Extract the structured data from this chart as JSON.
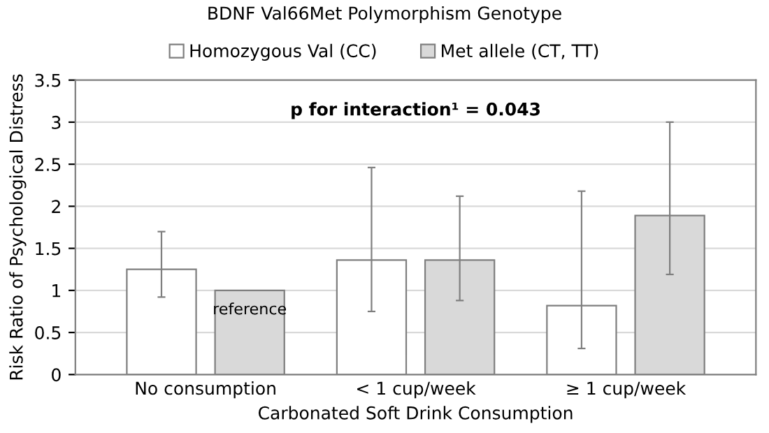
{
  "chart_data": {
    "type": "bar",
    "title": "BDNF Val66Met Polymorphism Genotype",
    "xlabel": "Carbonated Soft Drink Consumption",
    "ylabel": "Risk Ratio of Psychological Distress",
    "categories": [
      "No consumption",
      "< 1 cup/week",
      "≥ 1 cup/week"
    ],
    "series": [
      {
        "name": "Homozygous Val (CC)",
        "color": "#ffffff",
        "values": [
          1.25,
          1.36,
          0.82
        ],
        "errors": [
          [
            0.92,
            1.7
          ],
          [
            0.75,
            2.46
          ],
          [
            0.31,
            2.18
          ]
        ]
      },
      {
        "name": "Met allele (CT, TT)",
        "color": "#d9d9d9",
        "values": [
          1.0,
          1.36,
          1.89
        ],
        "errors": [
          null,
          [
            0.88,
            2.12
          ],
          [
            1.19,
            3.0
          ]
        ],
        "value_labels": [
          "reference",
          null,
          null
        ]
      }
    ],
    "annotations": [
      "p for interaction¹ = 0.043"
    ],
    "ylim": [
      0,
      3.5
    ],
    "yticks": [
      0,
      0.5,
      1,
      1.5,
      2,
      2.5,
      3,
      3.5
    ],
    "grid": "y",
    "legend": "top"
  }
}
